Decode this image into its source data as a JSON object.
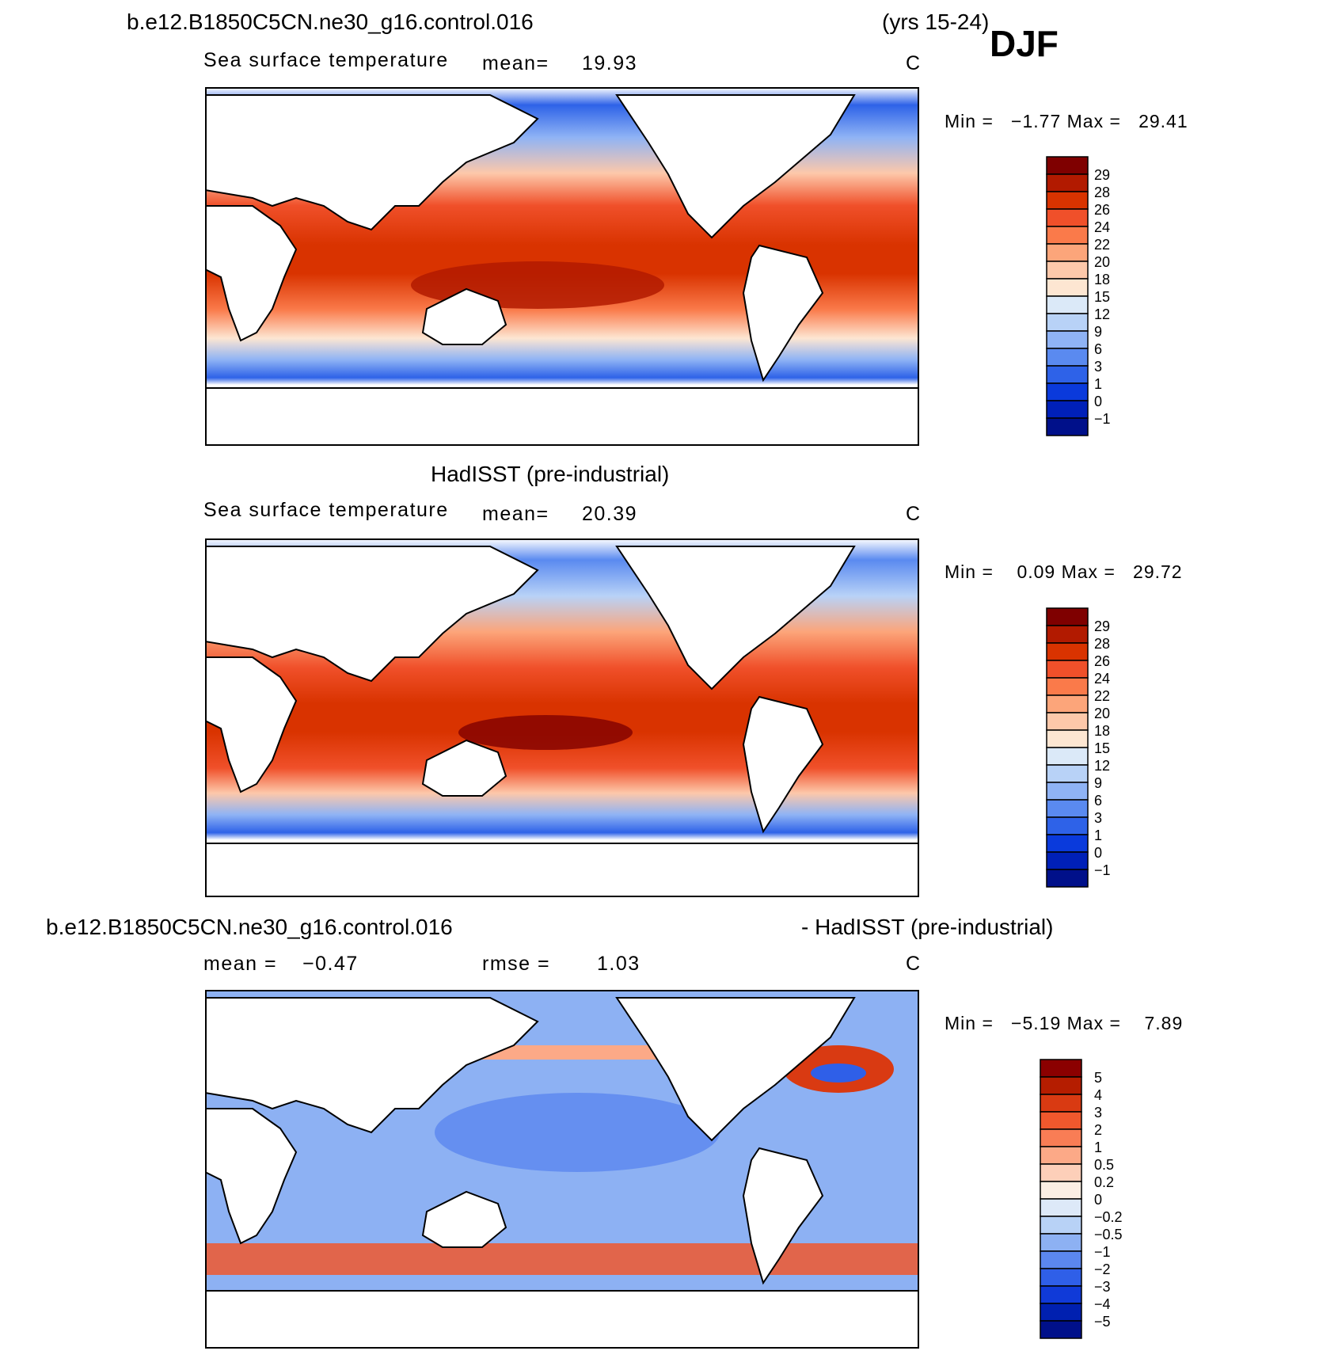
{
  "header": {
    "case_title": "b.e12.B1850C5CN.ne30_g16.control.016",
    "years": "(yrs 15-24)",
    "season": "DJF"
  },
  "panels": [
    {
      "left_label": "Sea surface temperature",
      "stat_label": "mean=",
      "stat_value": "19.93",
      "units": "C",
      "minmax": "Min =   −1.77 Max =   29.41",
      "colorbar_labels": [
        "29",
        "28",
        "26",
        "24",
        "22",
        "20",
        "18",
        "15",
        "12",
        "9",
        "6",
        "3",
        "1",
        "0",
        "−1"
      ]
    },
    {
      "title": "HadISST (pre-industrial)",
      "left_label": "Sea surface temperature",
      "stat_label": "mean=",
      "stat_value": "20.39",
      "units": "C",
      "minmax": "Min =    0.09 Max =   29.72",
      "colorbar_labels": [
        "29",
        "28",
        "26",
        "24",
        "22",
        "20",
        "18",
        "15",
        "12",
        "9",
        "6",
        "3",
        "1",
        "0",
        "−1"
      ]
    },
    {
      "title_left": "b.e12.B1850C5CN.ne30_g16.control.016",
      "title_right": "- HadISST (pre-industrial)",
      "mean_label": "mean =",
      "mean_value": "−0.47",
      "rmse_label": "rmse =",
      "rmse_value": "1.03",
      "units": "C",
      "minmax": "Min =   −5.19 Max =    7.89",
      "colorbar_labels": [
        "5",
        "4",
        "3",
        "2",
        "1",
        "0.5",
        "0.2",
        "0",
        "−0.2",
        "−0.5",
        "−1",
        "−2",
        "−3",
        "−4",
        "−5"
      ]
    }
  ],
  "colors": {
    "sst_scale": [
      "#7f0000",
      "#b21a00",
      "#d93300",
      "#f0502a",
      "#fa7a4a",
      "#fca57a",
      "#fdc8aa",
      "#fde6d2",
      "#dbe9f8",
      "#b8d2f7",
      "#8fb3f5",
      "#5a8af0",
      "#2e62e8",
      "#0a3adc",
      "#0020b8",
      "#00108a"
    ],
    "diff_scale": [
      "#8b0000",
      "#b51d00",
      "#d93a12",
      "#f0582d",
      "#f97d55",
      "#fca987",
      "#fdcfb9",
      "#fbeee3",
      "#dde9f8",
      "#b8d2f6",
      "#8db1f3",
      "#5b87ef",
      "#2f5fe8",
      "#103ad8",
      "#0020b0",
      "#00108a"
    ]
  }
}
